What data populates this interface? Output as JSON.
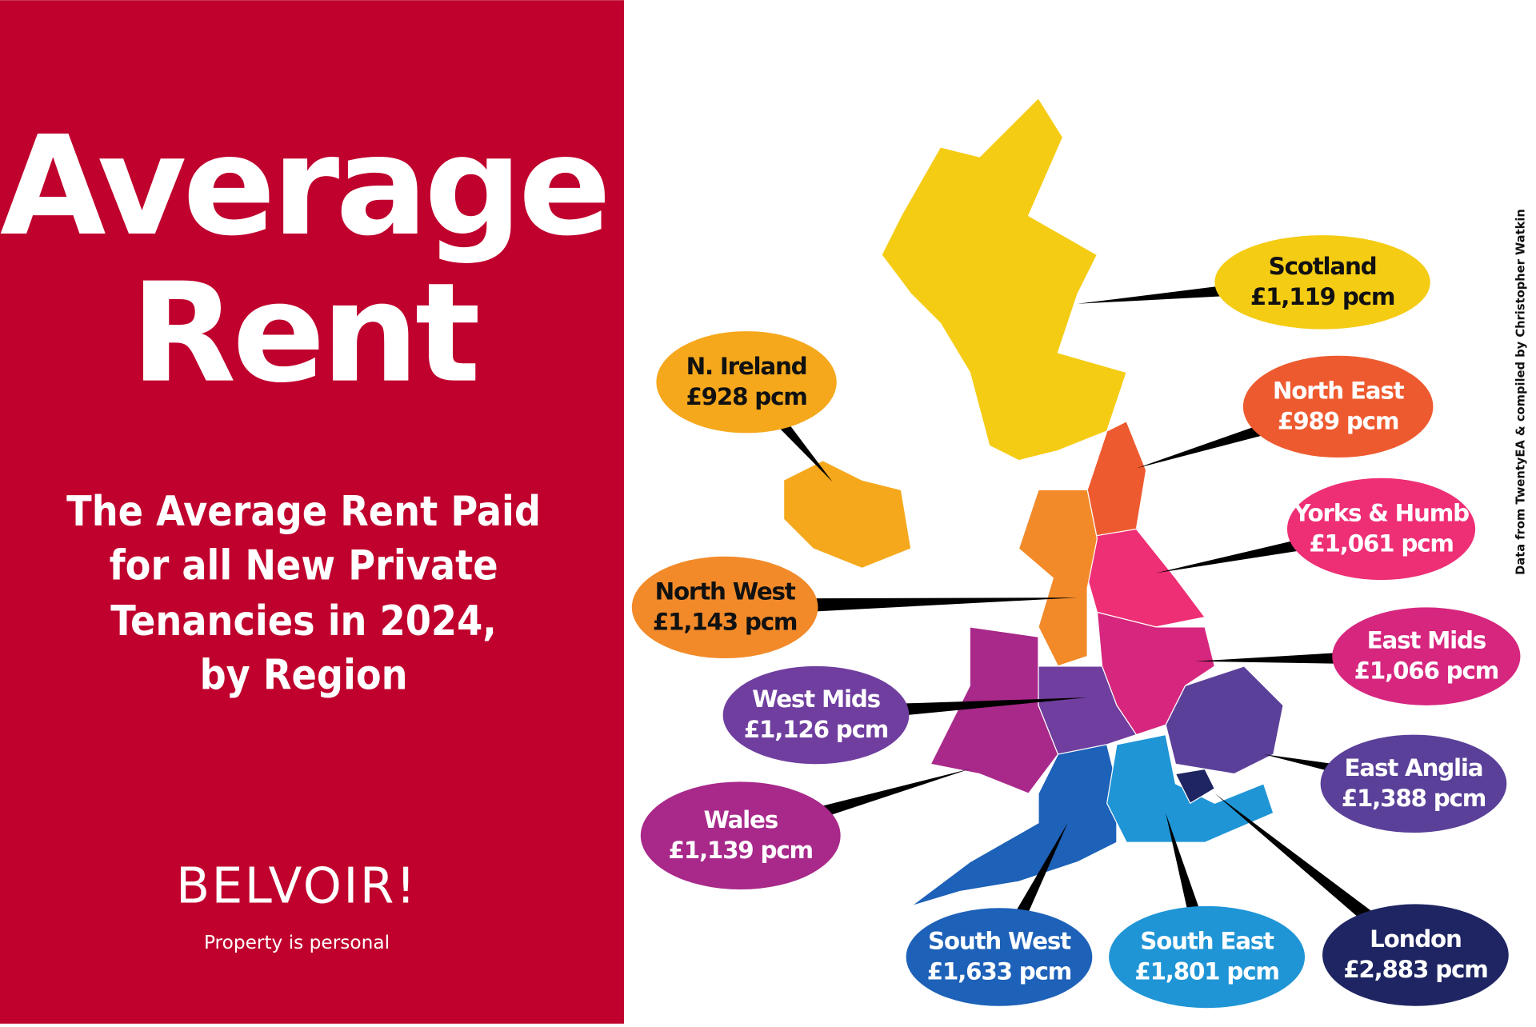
{
  "header": {
    "title_lines": [
      "Average",
      "Rent"
    ],
    "subtitle_lines": [
      "The Average Rent Paid",
      "for all New Private",
      "Tenancies in 2024,",
      "by Region"
    ],
    "brand": "BELVOIR!",
    "tagline": "Property is personal"
  },
  "credit": "Data from TwentyEA & compiled by Christopher Watkin",
  "regions": [
    {
      "name": "Scotland",
      "rent": "£1,119 pcm",
      "color": "#f5cc14"
    },
    {
      "name": "N. Ireland",
      "rent": "£928 pcm",
      "color": "#f5a81c"
    },
    {
      "name": "North East",
      "rent": "£989 pcm",
      "color": "#ee5a2f"
    },
    {
      "name": "Yorks & Humb",
      "rent": "£1,061 pcm",
      "color": "#ee2f75"
    },
    {
      "name": "North West",
      "rent": "£1,143 pcm",
      "color": "#f28a2a"
    },
    {
      "name": "East Mids",
      "rent": "£1,066 pcm",
      "color": "#d6267e"
    },
    {
      "name": "West Mids",
      "rent": "£1,126 pcm",
      "color": "#6f3e9f"
    },
    {
      "name": "East Anglia",
      "rent": "£1,388 pcm",
      "color": "#5a4099"
    },
    {
      "name": "Wales",
      "rent": "£1,139 pcm",
      "color": "#a8298a"
    },
    {
      "name": "South West",
      "rent": "£1,633 pcm",
      "color": "#1d61b8"
    },
    {
      "name": "South East",
      "rent": "£1,801 pcm",
      "color": "#1f95d6"
    },
    {
      "name": "London",
      "rent": "£2,883 pcm",
      "color": "#1e2562"
    }
  ]
}
